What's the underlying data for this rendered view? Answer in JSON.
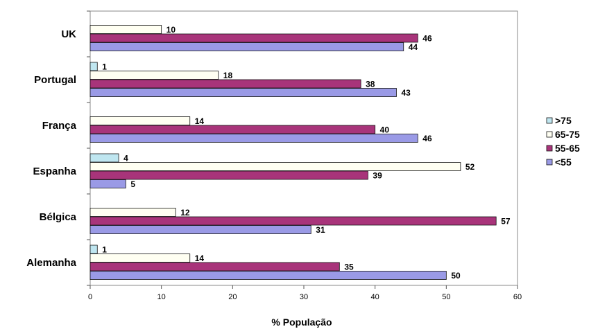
{
  "chart_data": {
    "type": "bar",
    "orientation": "horizontal",
    "title": "",
    "xlabel": "% População",
    "ylabel": "",
    "xlim": [
      0,
      60
    ],
    "xticks": [
      0,
      10,
      20,
      30,
      40,
      50,
      60
    ],
    "categories": [
      "UK",
      "Portugal",
      "França",
      "Espanha",
      "Bélgica",
      "Alemanha"
    ],
    "series": [
      {
        "name": ">75",
        "color": "#bfe6f0",
        "values": [
          0,
          1,
          0,
          4,
          0,
          1
        ]
      },
      {
        "name": "65-75",
        "color": "#fffff2",
        "values": [
          10,
          18,
          14,
          52,
          12,
          14
        ]
      },
      {
        "name": "55-65",
        "color": "#a8347a",
        "values": [
          46,
          38,
          40,
          39,
          57,
          35
        ]
      },
      {
        "name": "<55",
        "color": "#9a9ae6",
        "values": [
          44,
          43,
          46,
          5,
          31,
          50
        ]
      }
    ],
    "grid": false,
    "legend_position": "right"
  }
}
